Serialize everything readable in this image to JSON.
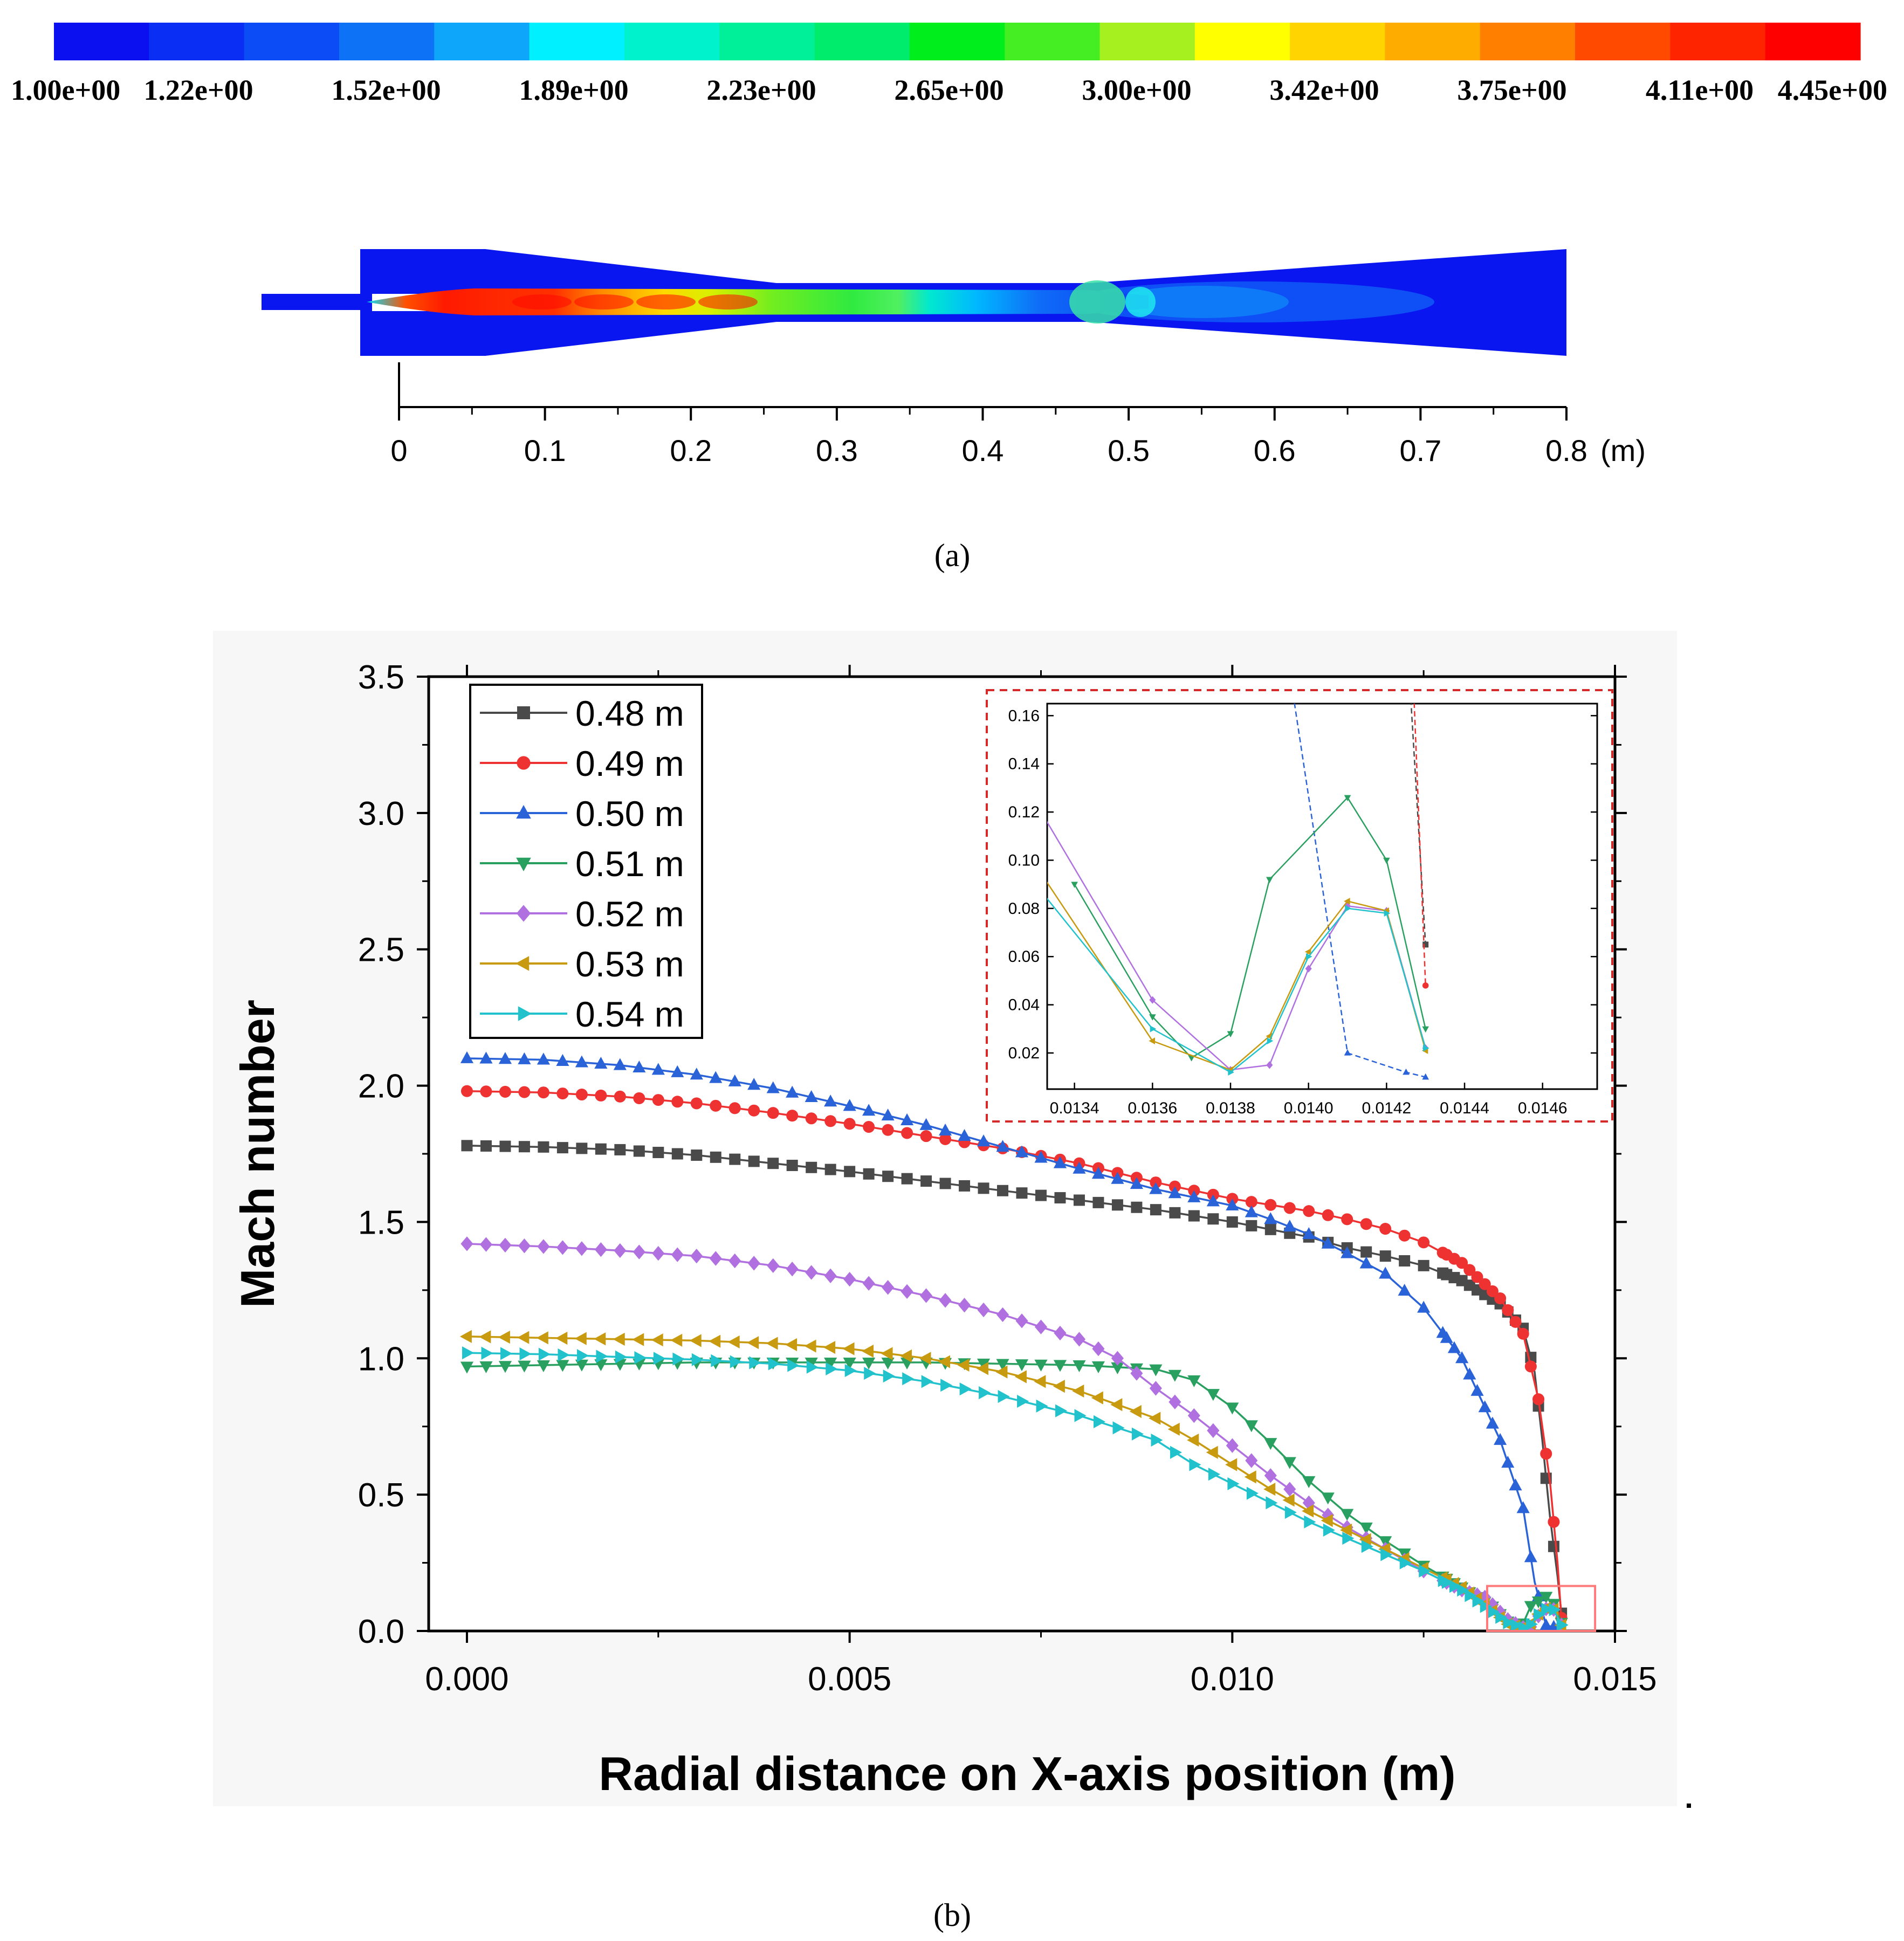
{
  "colors": {
    "palette": [
      "#0a10f0",
      "#0b2ef4",
      "#0c4cf6",
      "#0e72f7",
      "#0ea6fa",
      "#00f0ff",
      "#00f2cc",
      "#00ef99",
      "#00ec6c",
      "#00ee1c",
      "#44ee22",
      "#a6f020",
      "#ffff00",
      "#ffd400",
      "#ffac00",
      "#ff7f00",
      "#ff4a00",
      "#ff2400",
      "#ff0000"
    ],
    "s048": "#4a4a4a",
    "s049": "#ee3232",
    "s050": "#2a62d8",
    "s051": "#2aa060",
    "s052": "#b070e0",
    "s053": "#c89a10",
    "s054": "#22c2cc",
    "inset_border": "#d42a2a",
    "zoom_box": "#ff7a7a"
  },
  "chart_data": [
    {
      "type": "contour",
      "panel_label": "(a)",
      "colorbar": {
        "tick_labels": [
          "1.00e+00",
          "1.22e+00",
          "1.52e+00",
          "1.89e+00",
          "2.23e+00",
          "2.65e+00",
          "3.00e+00",
          "3.42e+00",
          "3.75e+00",
          "4.11e+00",
          "4.45e+00"
        ],
        "range": [
          1.0,
          4.45
        ]
      },
      "xaxis": {
        "ticks": [
          0,
          0.1,
          0.2,
          0.3,
          0.4,
          0.5,
          0.6,
          0.7,
          0.8
        ],
        "tick_labels": [
          "0",
          "0.1",
          "0.2",
          "0.3",
          "0.4",
          "0.5",
          "0.6",
          "0.7",
          "0.8"
        ],
        "unit_label": "(m)",
        "range": [
          0,
          0.8
        ]
      }
    },
    {
      "type": "line",
      "panel_label": "(b)",
      "title": "",
      "xlabel": "Radial distance on X-axis position (m)",
      "ylabel": "Mach number",
      "xlim": [
        -0.0005,
        0.015
      ],
      "ylim": [
        0,
        3.5
      ],
      "xticks": [
        0,
        0.005,
        0.01,
        0.015
      ],
      "xtick_labels": [
        "0.000",
        "0.005",
        "0.010",
        "0.015"
      ],
      "yticks": [
        0,
        0.5,
        1.0,
        1.5,
        2.0,
        2.5,
        3.0,
        3.5
      ],
      "ytick_labels": [
        "0.0",
        "0.5",
        "1.0",
        "1.5",
        "2.0",
        "2.5",
        "3.0",
        "3.5"
      ],
      "legend_position": "top-left",
      "series": [
        {
          "name": "0.48 m",
          "marker": "square",
          "color_key": "s048",
          "points": [
            [
              0,
              1.78
            ],
            [
              0.001,
              1.775
            ],
            [
              0.002,
              1.765
            ],
            [
              0.003,
              1.745
            ],
            [
              0.004,
              1.715
            ],
            [
              0.005,
              1.685
            ],
            [
              0.006,
              1.65
            ],
            [
              0.007,
              1.615
            ],
            [
              0.008,
              1.58
            ],
            [
              0.009,
              1.545
            ],
            [
              0.01,
              1.5
            ],
            [
              0.011,
              1.445
            ],
            [
              0.0115,
              1.405
            ],
            [
              0.012,
              1.375
            ],
            [
              0.0125,
              1.34
            ],
            [
              0.013,
              1.285
            ],
            [
              0.0135,
              1.2
            ],
            [
              0.0138,
              1.11
            ],
            [
              0.01395,
              0.95
            ],
            [
              0.01405,
              0.7
            ],
            [
              0.01415,
              0.42
            ],
            [
              0.01425,
              0.2
            ],
            [
              0.0143,
              0.065
            ]
          ]
        },
        {
          "name": "0.49 m",
          "marker": "circle",
          "color_key": "s049",
          "points": [
            [
              0,
              1.98
            ],
            [
              0.001,
              1.975
            ],
            [
              0.002,
              1.96
            ],
            [
              0.003,
              1.935
            ],
            [
              0.004,
              1.9
            ],
            [
              0.005,
              1.86
            ],
            [
              0.006,
              1.815
            ],
            [
              0.007,
              1.77
            ],
            [
              0.008,
              1.715
            ],
            [
              0.009,
              1.645
            ],
            [
              0.01,
              1.585
            ],
            [
              0.011,
              1.54
            ],
            [
              0.0115,
              1.51
            ],
            [
              0.012,
              1.475
            ],
            [
              0.0125,
              1.425
            ],
            [
              0.013,
              1.35
            ],
            [
              0.0135,
              1.22
            ],
            [
              0.0138,
              1.09
            ],
            [
              0.014,
              0.85
            ],
            [
              0.01415,
              0.55
            ],
            [
              0.01425,
              0.25
            ],
            [
              0.0143,
              0.048
            ]
          ]
        },
        {
          "name": "0.50 m",
          "marker": "triangle-up",
          "color_key": "s050",
          "points": [
            [
              0,
              2.1
            ],
            [
              0.001,
              2.095
            ],
            [
              0.002,
              2.075
            ],
            [
              0.003,
              2.04
            ],
            [
              0.004,
              1.99
            ],
            [
              0.005,
              1.925
            ],
            [
              0.006,
              1.855
            ],
            [
              0.007,
              1.775
            ],
            [
              0.008,
              1.695
            ],
            [
              0.009,
              1.62
            ],
            [
              0.01,
              1.56
            ],
            [
              0.0105,
              1.51
            ],
            [
              0.011,
              1.455
            ],
            [
              0.0115,
              1.385
            ],
            [
              0.012,
              1.31
            ],
            [
              0.0125,
              1.185
            ],
            [
              0.013,
              1.0
            ],
            [
              0.0135,
              0.7
            ],
            [
              0.0138,
              0.45
            ],
            [
              0.01395,
              0.18
            ],
            [
              0.0141,
              0.02
            ],
            [
              0.01425,
              0.012
            ],
            [
              0.0143,
              0.01
            ]
          ]
        },
        {
          "name": "0.51 m",
          "marker": "triangle-down",
          "color_key": "s051",
          "points": [
            [
              0,
              0.97
            ],
            [
              0.001,
              0.975
            ],
            [
              0.002,
              0.98
            ],
            [
              0.003,
              0.985
            ],
            [
              0.004,
              0.985
            ],
            [
              0.005,
              0.985
            ],
            [
              0.006,
              0.985
            ],
            [
              0.007,
              0.98
            ],
            [
              0.008,
              0.975
            ],
            [
              0.009,
              0.96
            ],
            [
              0.0095,
              0.92
            ],
            [
              0.01,
              0.82
            ],
            [
              0.0105,
              0.69
            ],
            [
              0.011,
              0.55
            ],
            [
              0.0115,
              0.43
            ],
            [
              0.012,
              0.33
            ],
            [
              0.0125,
              0.24
            ],
            [
              0.013,
              0.16
            ],
            [
              0.0134,
              0.09
            ],
            [
              0.0136,
              0.035
            ],
            [
              0.0137,
              0.018
            ],
            [
              0.0138,
              0.028
            ],
            [
              0.0139,
              0.092
            ],
            [
              0.0141,
              0.126
            ],
            [
              0.0142,
              0.1
            ],
            [
              0.0143,
              0.03
            ]
          ]
        },
        {
          "name": "0.52 m",
          "marker": "diamond",
          "color_key": "s052",
          "points": [
            [
              0,
              1.42
            ],
            [
              0.001,
              1.41
            ],
            [
              0.002,
              1.395
            ],
            [
              0.003,
              1.375
            ],
            [
              0.004,
              1.34
            ],
            [
              0.005,
              1.29
            ],
            [
              0.006,
              1.23
            ],
            [
              0.007,
              1.16
            ],
            [
              0.008,
              1.07
            ],
            [
              0.0085,
              1.0
            ],
            [
              0.009,
              0.89
            ],
            [
              0.0095,
              0.79
            ],
            [
              0.01,
              0.68
            ],
            [
              0.0105,
              0.57
            ],
            [
              0.011,
              0.47
            ],
            [
              0.0115,
              0.38
            ],
            [
              0.012,
              0.3
            ],
            [
              0.0125,
              0.22
            ],
            [
              0.013,
              0.15
            ],
            [
              0.0133,
              0.124
            ],
            [
              0.0136,
              0.042
            ],
            [
              0.0138,
              0.013
            ],
            [
              0.0139,
              0.015
            ],
            [
              0.014,
              0.055
            ],
            [
              0.0141,
              0.081
            ],
            [
              0.0142,
              0.079
            ],
            [
              0.0143,
              0.022
            ]
          ]
        },
        {
          "name": "0.53 m",
          "marker": "triangle-left",
          "color_key": "s053",
          "points": [
            [
              0,
              1.08
            ],
            [
              0.001,
              1.075
            ],
            [
              0.002,
              1.07
            ],
            [
              0.003,
              1.065
            ],
            [
              0.004,
              1.055
            ],
            [
              0.005,
              1.035
            ],
            [
              0.006,
              1.0
            ],
            [
              0.007,
              0.95
            ],
            [
              0.008,
              0.88
            ],
            [
              0.009,
              0.78
            ],
            [
              0.0095,
              0.7
            ],
            [
              0.01,
              0.61
            ],
            [
              0.0105,
              0.52
            ],
            [
              0.011,
              0.44
            ],
            [
              0.0115,
              0.37
            ],
            [
              0.012,
              0.3
            ],
            [
              0.0125,
              0.23
            ],
            [
              0.013,
              0.16
            ],
            [
              0.0133,
              0.098
            ],
            [
              0.0136,
              0.025
            ],
            [
              0.0138,
              0.013
            ],
            [
              0.0139,
              0.027
            ],
            [
              0.014,
              0.062
            ],
            [
              0.0141,
              0.083
            ],
            [
              0.0142,
              0.079
            ],
            [
              0.0143,
              0.021
            ]
          ]
        },
        {
          "name": "0.54 m",
          "marker": "triangle-right",
          "color_key": "s054",
          "points": [
            [
              0,
              1.02
            ],
            [
              0.001,
              1.015
            ],
            [
              0.002,
              1.005
            ],
            [
              0.003,
              0.995
            ],
            [
              0.004,
              0.98
            ],
            [
              0.005,
              0.955
            ],
            [
              0.006,
              0.915
            ],
            [
              0.007,
              0.86
            ],
            [
              0.008,
              0.79
            ],
            [
              0.009,
              0.7
            ],
            [
              0.0095,
              0.61
            ],
            [
              0.01,
              0.54
            ],
            [
              0.0105,
              0.47
            ],
            [
              0.011,
              0.4
            ],
            [
              0.0115,
              0.34
            ],
            [
              0.012,
              0.28
            ],
            [
              0.0125,
              0.22
            ],
            [
              0.013,
              0.15
            ],
            [
              0.0133,
              0.09
            ],
            [
              0.0136,
              0.03
            ],
            [
              0.0138,
              0.012
            ],
            [
              0.0139,
              0.025
            ],
            [
              0.014,
              0.06
            ],
            [
              0.0141,
              0.08
            ],
            [
              0.0142,
              0.078
            ],
            [
              0.0143,
              0.022
            ]
          ]
        }
      ],
      "inset": {
        "xlim": [
          0.01333,
          0.01474
        ],
        "ylim": [
          0.005,
          0.165
        ],
        "xticks": [
          0.0134,
          0.0136,
          0.0138,
          0.014,
          0.0142,
          0.0144,
          0.0146
        ],
        "xtick_labels": [
          "0.0134",
          "0.0136",
          "0.0138",
          "0.0140",
          "0.0142",
          "0.0144",
          "0.0146"
        ],
        "yticks": [
          0.02,
          0.04,
          0.06,
          0.08,
          0.1,
          0.12,
          0.14,
          0.16
        ],
        "ytick_labels": [
          "0.02",
          "0.04",
          "0.06",
          "0.08",
          "0.10",
          "0.12",
          "0.14",
          "0.16"
        ]
      },
      "zoom_region": {
        "x": [
          0.01333,
          0.01474
        ],
        "y": [
          0,
          0.165
        ]
      }
    }
  ]
}
